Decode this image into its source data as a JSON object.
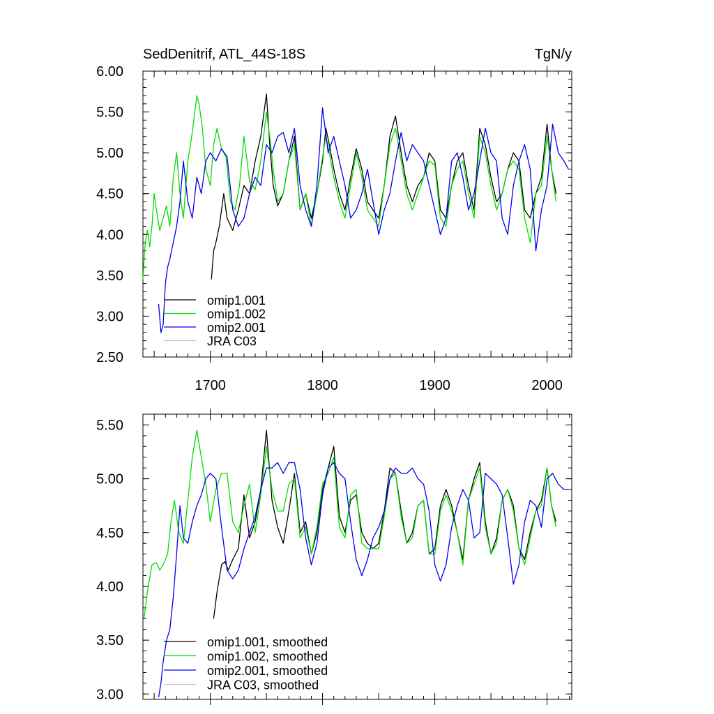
{
  "chart_data": [
    {
      "type": "line",
      "title_left": "SedDenitrif, ATL_44S-18S",
      "title_right": "TgN/y",
      "xlabel": "",
      "ylabel": "",
      "xlim": [
        1640,
        2022
      ],
      "ylim": [
        2.5,
        6.0
      ],
      "x_ticks": [
        1700,
        1800,
        1900,
        2000
      ],
      "x_tick_labels": [
        "1700",
        "1800",
        "1900",
        "2000"
      ],
      "y_ticks": [
        2.5,
        3.0,
        3.5,
        4.0,
        4.5,
        5.0,
        5.5,
        6.0
      ],
      "y_tick_labels": [
        "2.50",
        "3.00",
        "3.50",
        "4.00",
        "4.50",
        "5.00",
        "5.50",
        "6.00"
      ],
      "grid": false,
      "legend_position": "bottom-left",
      "series": [
        {
          "name": "omip1.001",
          "color": "#000000",
          "x": [
            1701,
            1703,
            1705,
            1708,
            1712,
            1715,
            1720,
            1725,
            1730,
            1735,
            1740,
            1745,
            1750,
            1753,
            1756,
            1760,
            1765,
            1770,
            1775,
            1780,
            1785,
            1790,
            1795,
            1800,
            1803,
            1806,
            1810,
            1815,
            1820,
            1825,
            1830,
            1835,
            1840,
            1845,
            1850,
            1855,
            1860,
            1865,
            1870,
            1875,
            1880,
            1885,
            1890,
            1895,
            1900,
            1905,
            1910,
            1915,
            1920,
            1925,
            1930,
            1935,
            1940,
            1945,
            1950,
            1955,
            1960,
            1965,
            1970,
            1975,
            1980,
            1985,
            1990,
            1995,
            2000,
            2004,
            2008
          ],
          "y": [
            3.45,
            3.8,
            3.9,
            4.1,
            4.5,
            4.2,
            4.05,
            4.3,
            4.6,
            4.5,
            4.9,
            5.2,
            5.72,
            5.1,
            4.6,
            4.35,
            4.5,
            4.9,
            5.2,
            4.3,
            4.5,
            4.2,
            4.5,
            4.9,
            5.3,
            5.1,
            4.8,
            4.5,
            4.3,
            4.7,
            5.05,
            4.8,
            4.4,
            4.3,
            4.2,
            4.6,
            5.2,
            5.45,
            5.0,
            4.6,
            4.4,
            4.6,
            4.7,
            5.0,
            4.9,
            4.3,
            4.2,
            4.6,
            4.9,
            5.0,
            4.6,
            4.3,
            5.3,
            5.1,
            4.7,
            4.4,
            4.5,
            4.8,
            5.0,
            4.9,
            4.3,
            4.2,
            4.5,
            4.7,
            5.35,
            4.8,
            4.5
          ]
        },
        {
          "name": "omip1.002",
          "color": "#00dd00",
          "x": [
            1640,
            1642,
            1644,
            1646,
            1648,
            1650,
            1652,
            1655,
            1658,
            1661,
            1664,
            1667,
            1670,
            1673,
            1676,
            1680,
            1684,
            1688,
            1690,
            1693,
            1696,
            1700,
            1703,
            1706,
            1710,
            1714,
            1718,
            1722,
            1726,
            1730,
            1735,
            1740,
            1745,
            1750,
            1753,
            1756,
            1760,
            1765,
            1770,
            1775,
            1780,
            1785,
            1790,
            1795,
            1800,
            1803,
            1806,
            1810,
            1815,
            1820,
            1825,
            1830,
            1835,
            1840,
            1845,
            1850,
            1855,
            1860,
            1865,
            1870,
            1875,
            1880,
            1885,
            1890,
            1895,
            1900,
            1905,
            1910,
            1915,
            1920,
            1925,
            1930,
            1935,
            1940,
            1945,
            1950,
            1955,
            1960,
            1965,
            1970,
            1975,
            1980,
            1985,
            1990,
            1995,
            2000,
            2004,
            2008
          ],
          "y": [
            3.45,
            3.9,
            4.05,
            3.85,
            4.1,
            4.5,
            4.3,
            4.05,
            4.2,
            4.35,
            4.1,
            4.7,
            5.0,
            4.5,
            4.2,
            4.9,
            5.25,
            5.7,
            5.6,
            5.3,
            4.8,
            4.6,
            5.1,
            5.3,
            5.05,
            4.95,
            4.4,
            4.3,
            4.6,
            5.2,
            4.65,
            4.55,
            4.9,
            5.5,
            5.2,
            4.8,
            4.4,
            4.5,
            4.9,
            5.1,
            4.3,
            4.5,
            4.1,
            4.5,
            4.95,
            5.2,
            5.0,
            4.7,
            4.4,
            4.2,
            4.6,
            5.0,
            4.7,
            4.3,
            4.2,
            4.1,
            4.6,
            5.1,
            5.3,
            4.9,
            4.5,
            4.3,
            4.5,
            4.7,
            4.9,
            4.85,
            4.2,
            4.1,
            4.6,
            4.8,
            4.9,
            4.5,
            4.2,
            5.2,
            5.0,
            4.6,
            4.3,
            4.5,
            4.8,
            4.9,
            4.8,
            4.2,
            3.9,
            4.5,
            4.6,
            5.2,
            4.8,
            4.4
          ]
        },
        {
          "name": "omip2.001",
          "color": "#0000ee",
          "x": [
            1654,
            1656,
            1658,
            1660,
            1662,
            1664,
            1667,
            1670,
            1673,
            1676,
            1680,
            1684,
            1688,
            1692,
            1696,
            1700,
            1705,
            1710,
            1715,
            1720,
            1725,
            1730,
            1735,
            1740,
            1745,
            1750,
            1755,
            1760,
            1765,
            1770,
            1775,
            1780,
            1785,
            1790,
            1795,
            1800,
            1805,
            1810,
            1815,
            1820,
            1825,
            1830,
            1835,
            1840,
            1845,
            1850,
            1855,
            1860,
            1865,
            1870,
            1875,
            1880,
            1885,
            1890,
            1895,
            1900,
            1905,
            1910,
            1915,
            1920,
            1925,
            1930,
            1935,
            1940,
            1945,
            1950,
            1955,
            1960,
            1965,
            1970,
            1975,
            1980,
            1985,
            1990,
            1995,
            2000,
            2005,
            2010,
            2015,
            2019
          ],
          "y": [
            3.15,
            2.8,
            2.9,
            3.4,
            3.6,
            3.7,
            3.9,
            4.1,
            4.4,
            4.9,
            4.4,
            4.2,
            4.7,
            4.5,
            4.9,
            5.0,
            4.9,
            5.05,
            4.95,
            4.3,
            4.1,
            4.2,
            4.5,
            4.7,
            4.6,
            5.1,
            5.0,
            5.2,
            5.25,
            5.0,
            5.3,
            4.6,
            4.3,
            4.1,
            4.6,
            5.55,
            5.0,
            5.2,
            4.9,
            4.6,
            4.2,
            4.3,
            4.5,
            4.8,
            4.4,
            4.0,
            4.3,
            4.5,
            4.9,
            5.25,
            4.9,
            5.1,
            5.0,
            4.9,
            4.6,
            4.3,
            4.0,
            4.2,
            4.9,
            5.0,
            4.7,
            4.3,
            4.5,
            4.9,
            5.3,
            5.0,
            4.9,
            4.2,
            4.0,
            4.6,
            4.9,
            5.1,
            4.8,
            3.8,
            4.3,
            4.6,
            5.35,
            5.0,
            4.9,
            4.8
          ]
        },
        {
          "name": "JRA C03",
          "color": "#c8c8c8",
          "x": [],
          "y": []
        }
      ]
    },
    {
      "type": "line",
      "title_left": "",
      "title_right": "",
      "xlabel": "",
      "ylabel": "",
      "xlim": [
        1640,
        2022
      ],
      "ylim": [
        2.95,
        5.6
      ],
      "x_ticks": [
        1700,
        1800,
        1900,
        2000
      ],
      "x_tick_labels": [],
      "y_ticks": [
        3.0,
        3.5,
        4.0,
        4.5,
        5.0,
        5.5
      ],
      "y_tick_labels": [
        "3.00",
        "3.50",
        "4.00",
        "4.50",
        "5.00",
        "5.50"
      ],
      "grid": false,
      "legend_position": "bottom-left",
      "series": [
        {
          "name": "omip1.001, smoothed",
          "color": "#000000",
          "x": [
            1703,
            1706,
            1710,
            1713,
            1716,
            1720,
            1725,
            1730,
            1735,
            1740,
            1745,
            1750,
            1755,
            1760,
            1765,
            1770,
            1775,
            1780,
            1785,
            1790,
            1795,
            1800,
            1805,
            1810,
            1815,
            1820,
            1825,
            1830,
            1835,
            1840,
            1845,
            1850,
            1855,
            1860,
            1865,
            1870,
            1875,
            1880,
            1885,
            1890,
            1895,
            1900,
            1905,
            1910,
            1915,
            1920,
            1925,
            1930,
            1935,
            1940,
            1945,
            1950,
            1955,
            1960,
            1965,
            1970,
            1975,
            1980,
            1985,
            1990,
            1995,
            2000,
            2004,
            2008
          ],
          "y": [
            3.7,
            3.95,
            4.2,
            4.23,
            4.15,
            4.25,
            4.35,
            4.85,
            4.45,
            4.6,
            4.9,
            5.45,
            4.8,
            4.55,
            4.4,
            4.7,
            5.05,
            4.5,
            4.6,
            4.3,
            4.5,
            4.9,
            5.1,
            5.3,
            4.65,
            4.5,
            4.8,
            4.85,
            4.5,
            4.4,
            4.35,
            4.4,
            4.7,
            5.1,
            5.05,
            4.7,
            4.4,
            4.5,
            4.75,
            4.8,
            4.3,
            4.35,
            4.75,
            4.9,
            4.75,
            4.5,
            4.25,
            4.8,
            5.0,
            5.15,
            4.6,
            4.3,
            4.45,
            4.8,
            4.9,
            4.75,
            4.35,
            4.25,
            4.5,
            4.7,
            4.8,
            5.1,
            4.75,
            4.6
          ]
        },
        {
          "name": "omip1.002, smoothed",
          "color": "#00dd00",
          "x": [
            1641,
            1644,
            1648,
            1652,
            1655,
            1658,
            1662,
            1665,
            1668,
            1672,
            1676,
            1680,
            1684,
            1688,
            1692,
            1696,
            1700,
            1705,
            1710,
            1715,
            1720,
            1725,
            1730,
            1735,
            1740,
            1745,
            1750,
            1755,
            1760,
            1765,
            1770,
            1775,
            1780,
            1785,
            1790,
            1795,
            1800,
            1805,
            1810,
            1815,
            1820,
            1825,
            1830,
            1835,
            1840,
            1845,
            1850,
            1855,
            1860,
            1865,
            1870,
            1875,
            1880,
            1885,
            1890,
            1895,
            1900,
            1905,
            1910,
            1915,
            1920,
            1925,
            1930,
            1935,
            1940,
            1945,
            1950,
            1955,
            1960,
            1965,
            1970,
            1975,
            1980,
            1985,
            1990,
            1995,
            2000,
            2004,
            2008
          ],
          "y": [
            3.7,
            3.95,
            4.2,
            4.22,
            4.15,
            4.2,
            4.3,
            4.6,
            4.8,
            4.5,
            4.4,
            4.8,
            5.2,
            5.45,
            5.2,
            4.95,
            4.6,
            4.9,
            5.05,
            5.05,
            4.6,
            4.5,
            4.75,
            4.95,
            4.5,
            4.85,
            5.3,
            4.9,
            4.7,
            4.7,
            4.95,
            5.0,
            4.45,
            4.55,
            4.3,
            4.55,
            4.95,
            5.05,
            5.2,
            4.55,
            4.45,
            4.85,
            4.9,
            4.4,
            4.35,
            4.35,
            4.35,
            4.65,
            5.0,
            5.05,
            4.65,
            4.4,
            4.45,
            4.75,
            4.8,
            4.3,
            4.3,
            4.7,
            4.85,
            4.7,
            4.5,
            4.2,
            4.8,
            4.95,
            5.1,
            4.55,
            4.3,
            4.4,
            4.8,
            4.9,
            4.7,
            4.35,
            4.2,
            4.45,
            4.7,
            4.75,
            5.1,
            4.75,
            4.55
          ]
        },
        {
          "name": "omip2.001, smoothed",
          "color": "#0000ee",
          "x": [
            1654,
            1656,
            1658,
            1661,
            1664,
            1667,
            1670,
            1673,
            1676,
            1680,
            1684,
            1688,
            1692,
            1696,
            1700,
            1705,
            1710,
            1715,
            1720,
            1725,
            1730,
            1735,
            1740,
            1745,
            1750,
            1755,
            1760,
            1765,
            1770,
            1775,
            1780,
            1785,
            1790,
            1795,
            1800,
            1805,
            1810,
            1815,
            1820,
            1825,
            1830,
            1835,
            1840,
            1845,
            1850,
            1855,
            1860,
            1865,
            1870,
            1875,
            1880,
            1885,
            1890,
            1895,
            1900,
            1905,
            1910,
            1915,
            1920,
            1925,
            1930,
            1935,
            1940,
            1945,
            1950,
            1955,
            1960,
            1965,
            1970,
            1975,
            1980,
            1985,
            1990,
            1995,
            2000,
            2005,
            2010,
            2015,
            2019
          ],
          "y": [
            2.97,
            3.1,
            3.3,
            3.5,
            3.6,
            3.9,
            4.3,
            4.75,
            4.45,
            4.4,
            4.6,
            4.75,
            4.85,
            5.0,
            5.05,
            5.0,
            4.55,
            4.15,
            4.07,
            4.15,
            4.35,
            4.5,
            4.65,
            4.9,
            5.1,
            5.1,
            5.15,
            5.05,
            5.15,
            5.15,
            4.9,
            4.45,
            4.2,
            4.4,
            4.85,
            5.1,
            5.15,
            5.05,
            5.0,
            4.6,
            4.25,
            4.1,
            4.25,
            4.45,
            4.55,
            4.7,
            5.0,
            5.1,
            5.05,
            5.05,
            5.1,
            5.0,
            4.95,
            4.7,
            4.2,
            4.05,
            4.2,
            4.55,
            4.75,
            4.9,
            4.8,
            4.45,
            4.5,
            5.05,
            5.0,
            4.95,
            4.85,
            4.45,
            4.02,
            4.2,
            4.6,
            4.8,
            4.75,
            4.55,
            5.0,
            5.05,
            4.95,
            4.9,
            4.9
          ]
        },
        {
          "name": "JRA C03, smoothed",
          "color": "#c8c8c8",
          "x": [],
          "y": []
        }
      ]
    }
  ]
}
